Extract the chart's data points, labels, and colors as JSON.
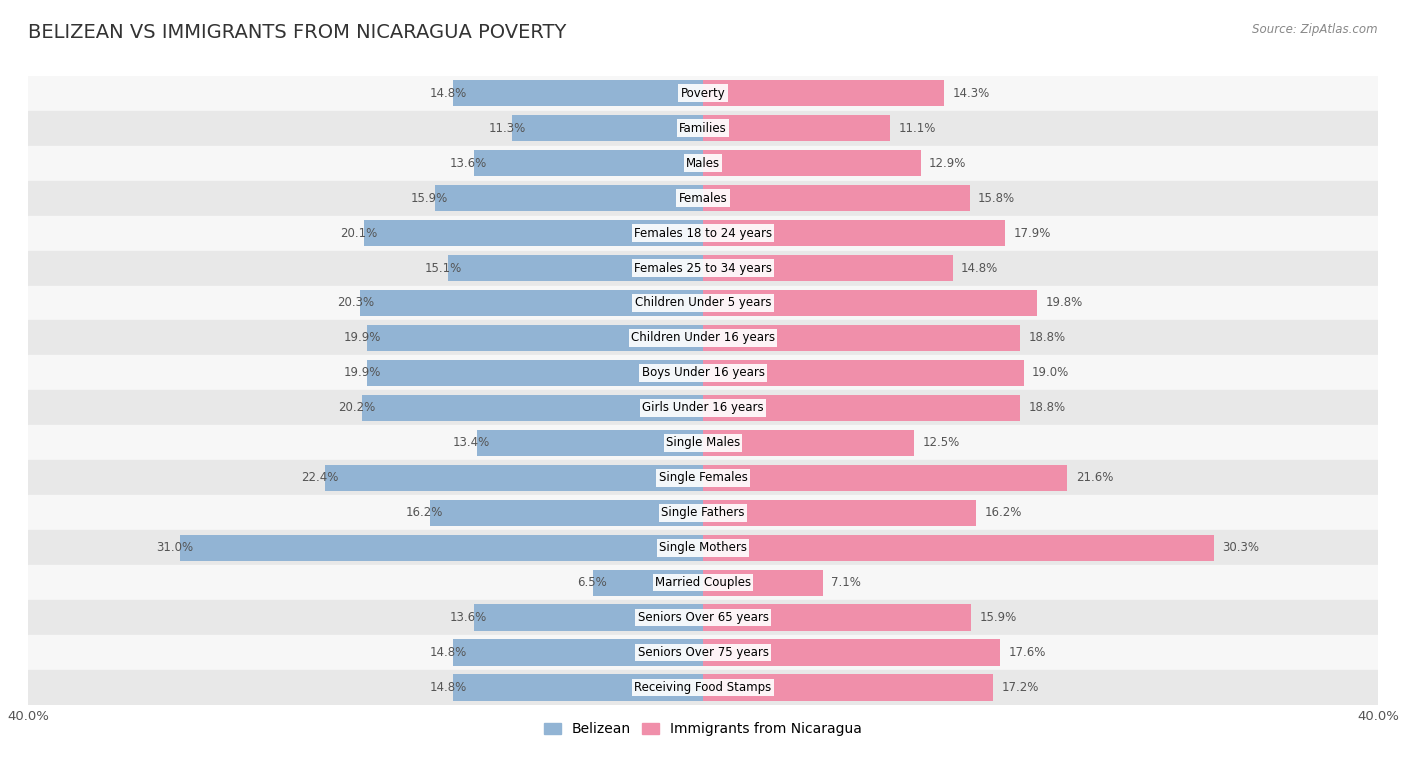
{
  "title": "BELIZEAN VS IMMIGRANTS FROM NICARAGUA POVERTY",
  "source": "Source: ZipAtlas.com",
  "categories": [
    "Poverty",
    "Families",
    "Males",
    "Females",
    "Females 18 to 24 years",
    "Females 25 to 34 years",
    "Children Under 5 years",
    "Children Under 16 years",
    "Boys Under 16 years",
    "Girls Under 16 years",
    "Single Males",
    "Single Females",
    "Single Fathers",
    "Single Mothers",
    "Married Couples",
    "Seniors Over 65 years",
    "Seniors Over 75 years",
    "Receiving Food Stamps"
  ],
  "belizean": [
    14.8,
    11.3,
    13.6,
    15.9,
    20.1,
    15.1,
    20.3,
    19.9,
    19.9,
    20.2,
    13.4,
    22.4,
    16.2,
    31.0,
    6.5,
    13.6,
    14.8,
    14.8
  ],
  "nicaragua": [
    14.3,
    11.1,
    12.9,
    15.8,
    17.9,
    14.8,
    19.8,
    18.8,
    19.0,
    18.8,
    12.5,
    21.6,
    16.2,
    30.3,
    7.1,
    15.9,
    17.6,
    17.2
  ],
  "max_val": 40.0,
  "bar_color_belizean": "#92b4d4",
  "bar_color_nicaragua": "#f08faa",
  "bg_color_row_odd": "#e8e8e8",
  "bg_color_row_even": "#f7f7f7",
  "label_color": "#555555",
  "title_fontsize": 14,
  "tick_fontsize": 9.5,
  "legend_fontsize": 10,
  "bar_height": 0.75
}
